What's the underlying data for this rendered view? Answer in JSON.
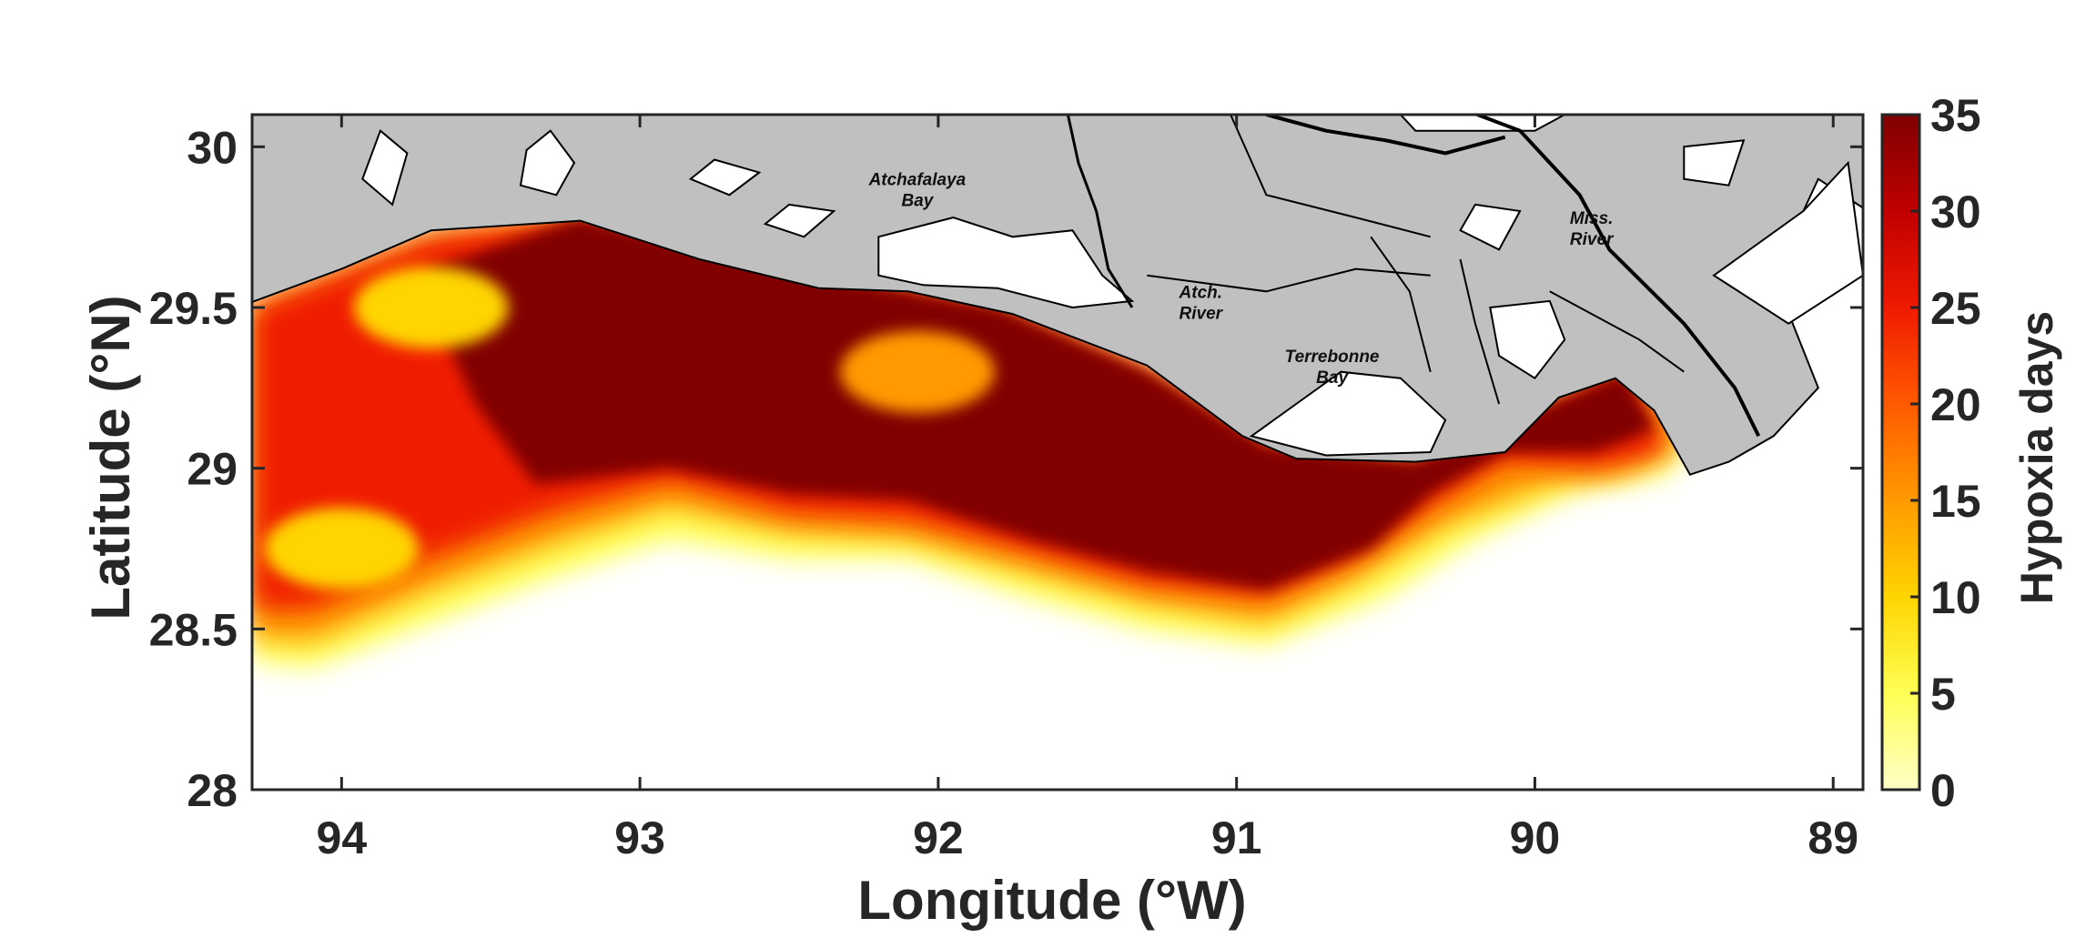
{
  "map": {
    "x_axis": {
      "title": "Longitude (°W)",
      "ticks": [
        {
          "value": -94,
          "label": "94"
        },
        {
          "value": -93,
          "label": "93"
        },
        {
          "value": -92,
          "label": "92"
        },
        {
          "value": -91,
          "label": "91"
        },
        {
          "value": -90,
          "label": "90"
        },
        {
          "value": -89,
          "label": "89"
        }
      ],
      "range": [
        -94.3,
        -88.9
      ]
    },
    "y_axis": {
      "title": "Latitude (°N)",
      "ticks": [
        {
          "value": 28,
          "label": "28"
        },
        {
          "value": 28.5,
          "label": "28.5"
        },
        {
          "value": 29,
          "label": "29"
        },
        {
          "value": 29.5,
          "label": "29.5"
        },
        {
          "value": 30,
          "label": "30"
        }
      ],
      "range": [
        28,
        30.1
      ]
    },
    "colorbar": {
      "title": "Hypoxia days",
      "range": [
        0,
        35
      ],
      "ticks": [
        {
          "value": 0,
          "label": "0"
        },
        {
          "value": 5,
          "label": "5"
        },
        {
          "value": 10,
          "label": "10"
        },
        {
          "value": 15,
          "label": "15"
        },
        {
          "value": 20,
          "label": "20"
        },
        {
          "value": 25,
          "label": "25"
        },
        {
          "value": 30,
          "label": "30"
        },
        {
          "value": 35,
          "label": "35"
        }
      ],
      "colors": [
        "#ffffc8",
        "#ffff55",
        "#ffd400",
        "#ff9a00",
        "#ff5a00",
        "#f01a00",
        "#c00000",
        "#800000"
      ]
    },
    "land_color": "#c0c0c0",
    "place_labels": [
      {
        "id": "atchafalaya-bay",
        "lines": [
          "Atchafalaya",
          "Bay"
        ],
        "lon": -92.07,
        "lat": 29.88
      },
      {
        "id": "atch-river",
        "lines": [
          "Atch.",
          "River"
        ],
        "lon": -91.12,
        "lat": 29.53
      },
      {
        "id": "terrebonne-bay",
        "lines": [
          "Terrebonne",
          "Bay"
        ],
        "lon": -90.68,
        "lat": 29.33
      },
      {
        "id": "miss-river",
        "lines": [
          "Miss.",
          "River"
        ],
        "lon": -89.81,
        "lat": 29.76
      }
    ],
    "chart_data": {
      "type": "heatmap",
      "title": "",
      "xlabel": "Longitude (°W)",
      "ylabel": "Latitude (°N)",
      "colorbar_label": "Hypoxia days",
      "value_range": [
        0,
        35
      ],
      "xlim": [
        -94.3,
        -88.9
      ],
      "ylim": [
        28,
        30.1
      ],
      "grid": false,
      "hypoxia_zones": [
        {
          "level": 5,
          "polygon": [
            [
              -94.3,
              29.5
            ],
            [
              -93.7,
              29.72
            ],
            [
              -93.2,
              29.78
            ],
            [
              -92.5,
              29.62
            ],
            [
              -91.8,
              29.5
            ],
            [
              -91.3,
              29.3
            ],
            [
              -90.9,
              29.07
            ],
            [
              -90.4,
              29.02
            ],
            [
              -89.95,
              29.2
            ],
            [
              -89.7,
              29.32
            ],
            [
              -89.45,
              29.14
            ],
            [
              -89.55,
              28.98
            ],
            [
              -89.85,
              28.93
            ],
            [
              -90.2,
              28.78
            ],
            [
              -90.5,
              28.6
            ],
            [
              -90.9,
              28.45
            ],
            [
              -91.3,
              28.5
            ],
            [
              -91.7,
              28.6
            ],
            [
              -92.1,
              28.72
            ],
            [
              -92.5,
              28.72
            ],
            [
              -92.9,
              28.78
            ],
            [
              -93.3,
              28.66
            ],
            [
              -93.7,
              28.52
            ],
            [
              -94.1,
              28.38
            ],
            [
              -94.3,
              28.4
            ]
          ]
        },
        {
          "level": 15,
          "polygon": [
            [
              -94.3,
              29.5
            ],
            [
              -93.7,
              29.72
            ],
            [
              -93.2,
              29.78
            ],
            [
              -92.5,
              29.62
            ],
            [
              -91.8,
              29.5
            ],
            [
              -91.3,
              29.3
            ],
            [
              -90.9,
              29.07
            ],
            [
              -90.4,
              29.02
            ],
            [
              -89.95,
              29.2
            ],
            [
              -89.7,
              29.32
            ],
            [
              -89.5,
              29.1
            ],
            [
              -89.7,
              28.98
            ],
            [
              -89.95,
              28.95
            ],
            [
              -90.3,
              28.82
            ],
            [
              -90.6,
              28.65
            ],
            [
              -90.9,
              28.52
            ],
            [
              -91.3,
              28.58
            ],
            [
              -91.7,
              28.68
            ],
            [
              -92.1,
              28.78
            ],
            [
              -92.5,
              28.8
            ],
            [
              -92.9,
              28.88
            ],
            [
              -93.3,
              28.76
            ],
            [
              -93.7,
              28.62
            ],
            [
              -94.1,
              28.46
            ],
            [
              -94.3,
              28.47
            ]
          ]
        },
        {
          "level": 25,
          "polygon": [
            [
              -94.3,
              29.5
            ],
            [
              -93.7,
              29.72
            ],
            [
              -93.2,
              29.78
            ],
            [
              -92.5,
              29.62
            ],
            [
              -91.8,
              29.5
            ],
            [
              -91.3,
              29.3
            ],
            [
              -90.9,
              29.07
            ],
            [
              -90.4,
              29.02
            ],
            [
              -89.95,
              29.2
            ],
            [
              -89.7,
              29.32
            ],
            [
              -89.55,
              29.05
            ],
            [
              -89.8,
              29.0
            ],
            [
              -90.1,
              29.02
            ],
            [
              -90.35,
              28.88
            ],
            [
              -90.6,
              28.72
            ],
            [
              -90.9,
              28.6
            ],
            [
              -91.3,
              28.64
            ],
            [
              -91.7,
              28.74
            ],
            [
              -92.1,
              28.84
            ],
            [
              -92.5,
              28.86
            ],
            [
              -92.9,
              28.96
            ],
            [
              -93.3,
              28.86
            ],
            [
              -93.7,
              28.72
            ],
            [
              -94.1,
              28.56
            ],
            [
              -94.3,
              28.56
            ]
          ]
        },
        {
          "level": 35,
          "polygon": [
            [
              -93.7,
              29.62
            ],
            [
              -93.2,
              29.78
            ],
            [
              -92.5,
              29.62
            ],
            [
              -91.8,
              29.5
            ],
            [
              -91.3,
              29.3
            ],
            [
              -90.9,
              29.07
            ],
            [
              -90.4,
              29.02
            ],
            [
              -89.95,
              29.2
            ],
            [
              -89.7,
              29.3
            ],
            [
              -89.6,
              29.12
            ],
            [
              -89.8,
              29.05
            ],
            [
              -90.1,
              29.05
            ],
            [
              -90.35,
              28.92
            ],
            [
              -90.55,
              28.75
            ],
            [
              -90.9,
              28.62
            ],
            [
              -91.3,
              28.68
            ],
            [
              -91.7,
              28.78
            ],
            [
              -92.1,
              28.9
            ],
            [
              -92.5,
              28.92
            ],
            [
              -92.9,
              29.0
            ],
            [
              -93.35,
              28.95
            ],
            [
              -93.55,
              29.2
            ],
            [
              -93.65,
              29.4
            ]
          ]
        }
      ],
      "low_value_patches": [
        {
          "level": 15,
          "lon": -92.07,
          "lat": 29.3
        },
        {
          "level": 10,
          "lon": -93.7,
          "lat": 29.5
        },
        {
          "level": 10,
          "lon": -94.0,
          "lat": 28.75
        }
      ]
    }
  }
}
